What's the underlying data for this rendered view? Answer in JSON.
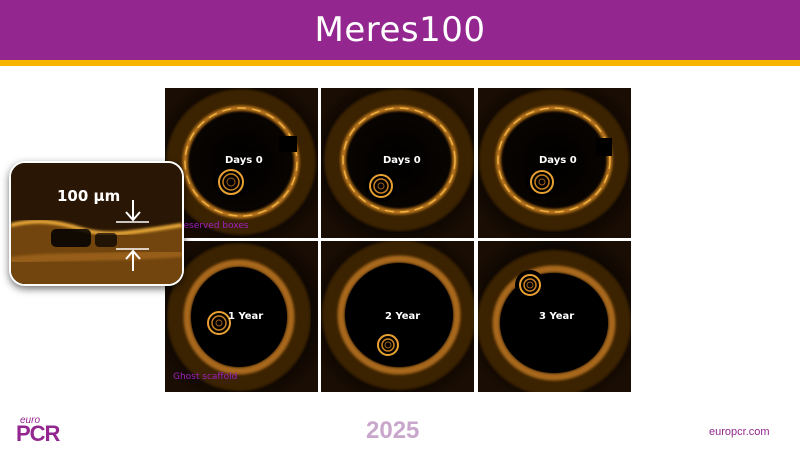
{
  "slide": {
    "title": "Meres100",
    "year": "2025",
    "url": "europcr.com",
    "logo": {
      "small": "euro",
      "big": "PCR"
    }
  },
  "colors": {
    "header": "#93278f",
    "stripe": "#f7b500",
    "annotation": "#a020c0"
  },
  "inset": {
    "scale_label": "100 µm"
  },
  "panels": [
    {
      "timepoint": "Days 0",
      "annotation": "reserved boxes"
    },
    {
      "timepoint": "Days 0",
      "annotation": ""
    },
    {
      "timepoint": "Days 0",
      "annotation": ""
    },
    {
      "timepoint": "1 Year",
      "annotation": "Ghost scaffold"
    },
    {
      "timepoint": "2 Year",
      "annotation": ""
    },
    {
      "timepoint": "3 Year",
      "annotation": ""
    }
  ]
}
